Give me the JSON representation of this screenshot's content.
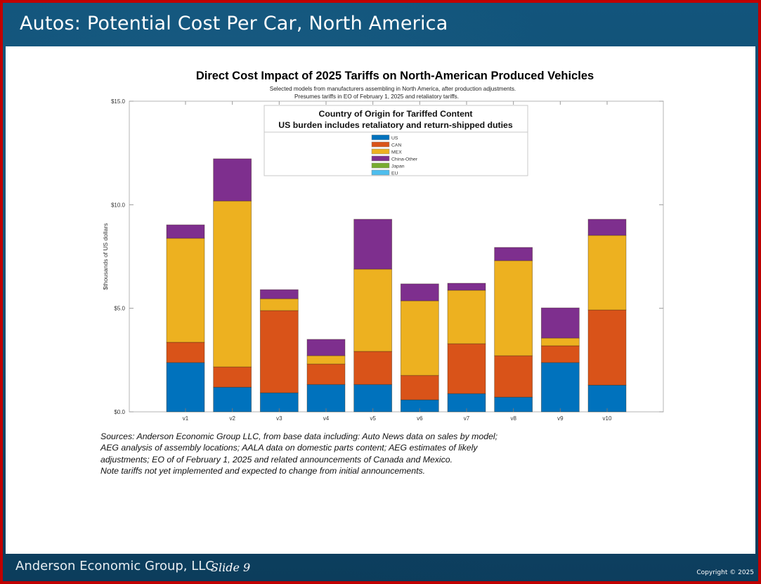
{
  "slide": {
    "title": "Autos: Potential Cost Per Car, North America",
    "footer_org": "Anderson Economic Group, LLC",
    "footer_slide": "Slide 9",
    "copyright": "Copyright © 2025"
  },
  "sources_lines": [
    "Sources: Anderson Economic Group LLC, from base data including: Auto News data on sales by model;",
    "AEG analysis of assembly locations; AALA data on domestic parts content; AEG estimates of likely",
    "adjustments; EO of of February 1, 2025 and related announcements of Canada and Mexico.",
    "Note tariffs not yet implemented and expected to change from initial announcements."
  ],
  "chart_data": {
    "type": "bar",
    "stacked": true,
    "title": "Direct Cost Impact of 2025 Tariffs on North-American Produced Vehicles",
    "subtitle_lines": [
      "Selected models from manufacturers assembling in North America, after production adjustments.",
      "Presumes tariffs in EO of February 1, 2025 and retaliatory tariffs."
    ],
    "xlabel": "",
    "ylabel": "$thousands of US dollars",
    "ylim": [
      0,
      15
    ],
    "yticks": [
      0,
      5,
      10,
      15
    ],
    "ytick_labels": [
      "$0.0",
      "$5.0",
      "$10.0",
      "$15.0"
    ],
    "grid": false,
    "categories": [
      "v1",
      "v2",
      "v3",
      "v4",
      "v5",
      "v6",
      "v7",
      "v8",
      "v9",
      "v10"
    ],
    "legend": {
      "title_lines": [
        "Country of Origin for Tariffed Content",
        "US burden includes retaliatory and return-shipped duties"
      ],
      "placement": "top-center"
    },
    "series": [
      {
        "name": "US",
        "color": "#0072bd",
        "values": [
          2.38,
          1.19,
          0.92,
          1.32,
          1.32,
          0.58,
          0.88,
          0.71,
          2.38,
          1.29
        ]
      },
      {
        "name": "CAN",
        "color": "#d95319",
        "values": [
          0.98,
          0.98,
          3.97,
          0.99,
          1.6,
          1.18,
          2.41,
          2.0,
          0.81,
          3.63
        ]
      },
      {
        "name": "MEX",
        "color": "#edb120",
        "values": [
          5.02,
          8.01,
          0.57,
          0.4,
          3.97,
          3.6,
          2.58,
          4.59,
          0.37,
          3.6
        ]
      },
      {
        "name": "China-Other",
        "color": "#7e2f8e",
        "values": [
          0.65,
          2.04,
          0.44,
          0.79,
          2.41,
          0.82,
          0.34,
          0.64,
          1.46,
          0.78
        ]
      },
      {
        "name": "Japan",
        "color": "#77ac30",
        "values": [
          0,
          0,
          0,
          0,
          0,
          0,
          0,
          0,
          0,
          0
        ]
      },
      {
        "name": "EU",
        "color": "#4dbeee",
        "values": [
          0,
          0,
          0,
          0,
          0,
          0,
          0,
          0,
          0,
          0
        ]
      }
    ]
  }
}
